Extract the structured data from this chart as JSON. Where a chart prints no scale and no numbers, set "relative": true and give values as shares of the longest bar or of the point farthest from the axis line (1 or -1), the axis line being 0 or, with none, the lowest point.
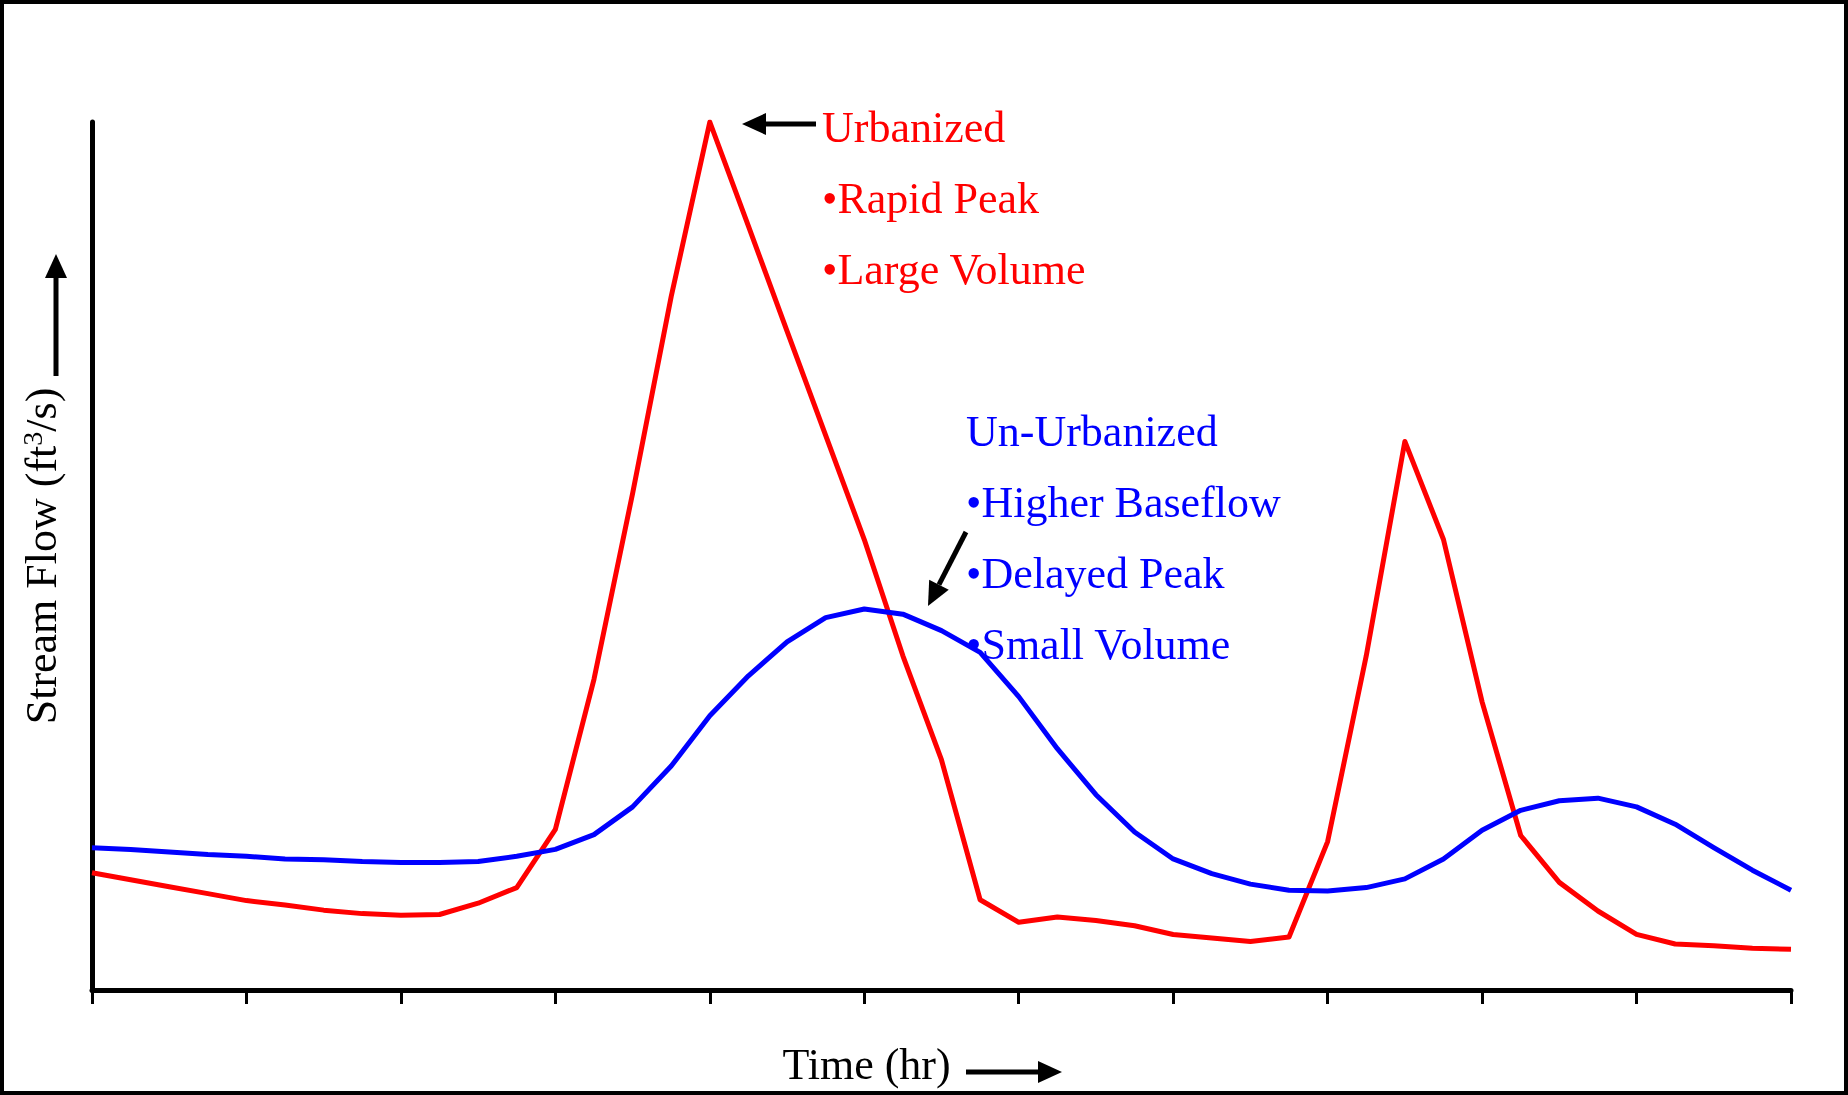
{
  "chart_data": {
    "type": "line",
    "relative": true,
    "marker": "none",
    "xlabel": "Time (hr)",
    "ylabel": "Stream Flow (ft$^{3}$/s)",
    "categories": [
      null,
      null,
      null,
      null,
      null,
      null,
      null,
      null,
      null,
      null,
      null,
      null,
      null,
      null,
      null,
      null,
      null,
      null,
      null,
      null,
      null,
      null,
      null,
      null,
      null,
      null,
      null,
      null,
      null,
      null,
      null,
      null,
      null,
      null,
      null,
      null,
      null,
      null,
      null,
      null,
      null,
      null,
      null,
      null,
      null
    ],
    "series": [
      {
        "name": "Urbanized",
        "color": "#ff0000",
        "values": [
          0.135,
          0.127,
          0.119,
          0.111,
          0.103,
          0.098,
          0.092,
          0.088,
          0.086,
          0.087,
          0.1,
          0.118,
          0.185,
          0.358,
          0.572,
          0.799,
          1,
          0.88,
          0.759,
          0.639,
          0.519,
          0.385,
          0.265,
          0.104,
          0.078,
          0.084,
          0.08,
          0.074,
          0.064,
          0.06,
          0.056,
          0.061,
          0.171,
          0.385,
          0.632,
          0.519,
          0.332,
          0.178,
          0.124,
          0.091,
          0.064,
          0.053,
          0.051,
          0.048,
          0.047
        ]
      },
      {
        "name": "Un-Urbanized",
        "color": "#0000ff",
        "values": [
          0.164,
          0.162,
          0.159,
          0.156,
          0.154,
          0.151,
          0.15,
          0.148,
          0.147,
          0.147,
          0.148,
          0.154,
          0.162,
          0.179,
          0.211,
          0.258,
          0.316,
          0.362,
          0.401,
          0.429,
          0.439,
          0.433,
          0.414,
          0.389,
          0.338,
          0.278,
          0.225,
          0.182,
          0.151,
          0.134,
          0.122,
          0.115,
          0.114,
          0.118,
          0.128,
          0.151,
          0.184,
          0.207,
          0.218,
          0.221,
          0.211,
          0.191,
          0.164,
          0.138,
          0.115
        ]
      }
    ],
    "annotations": [
      "•Rapid Peak\n•Large Volume",
      "•Higher Baseflow\n•Delayed Peak\n•Small Volume"
    ]
  }
}
